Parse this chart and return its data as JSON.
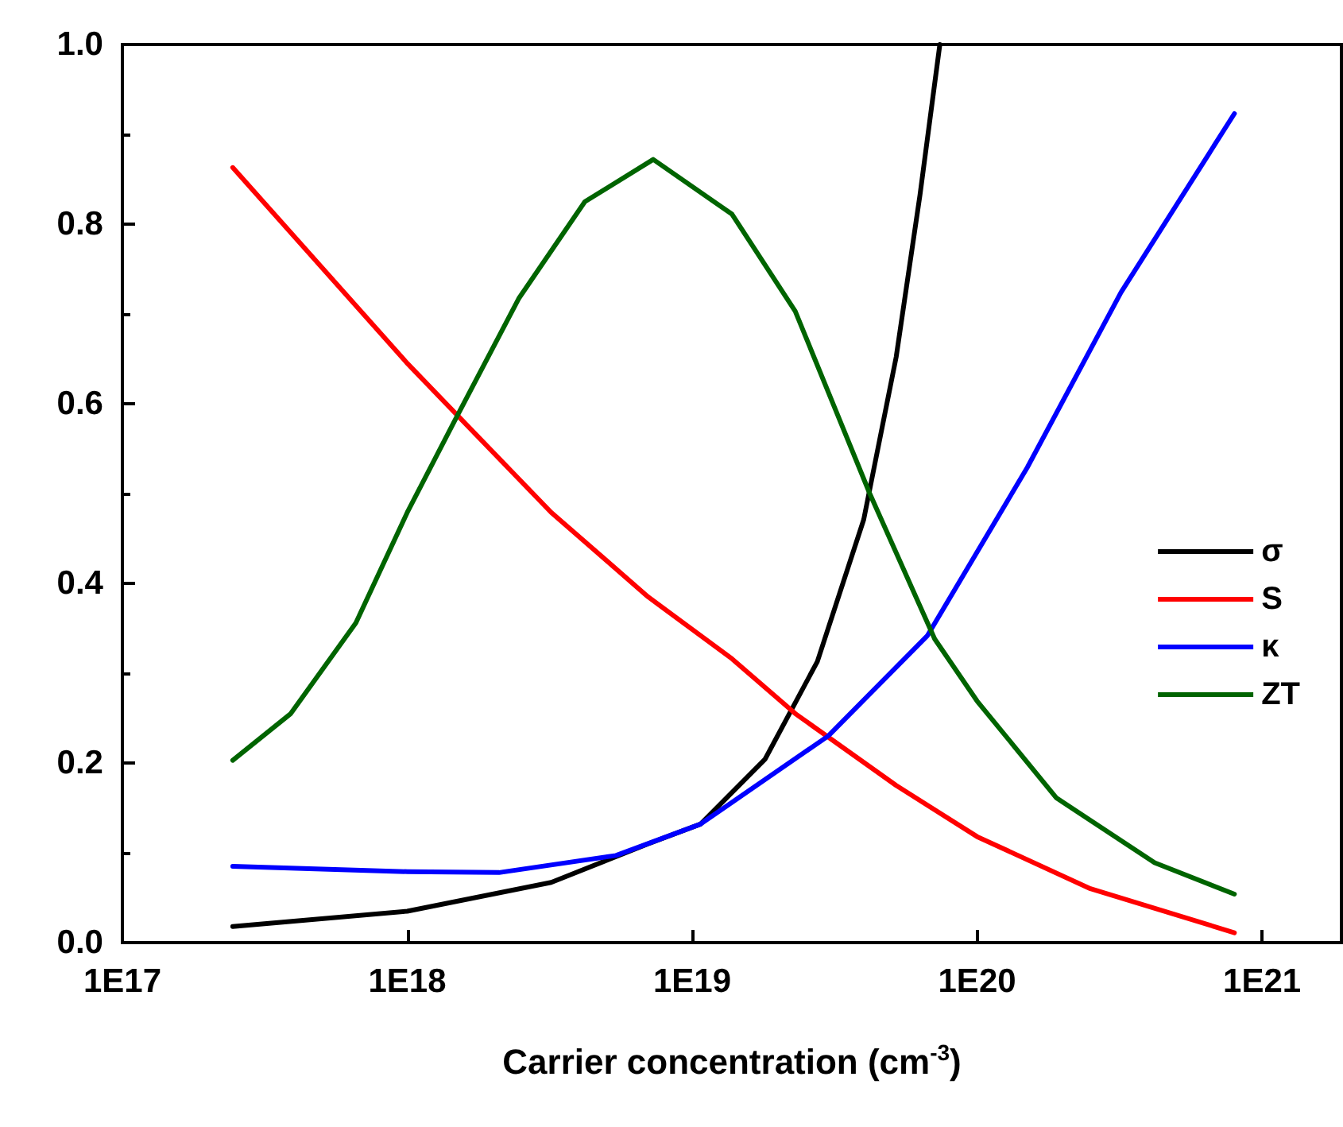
{
  "chart_data": {
    "type": "line",
    "xlabel": "Carrier concentration (cm$^{-3}$)",
    "log": "x",
    "xlim": [
      1e+17,
      1.9e+21
    ],
    "xticks": [
      {
        "value": 1e+17,
        "label": "1E17"
      },
      {
        "value": 1e+18,
        "label": "1E18"
      },
      {
        "value": 1e+19,
        "label": "1E19"
      },
      {
        "value": 1e+20,
        "label": "1E20"
      },
      {
        "value": 1e+21,
        "label": "1E21"
      }
    ],
    "ylim": [
      0,
      1
    ],
    "yticks": [
      {
        "value": 0,
        "label": "0.0"
      },
      {
        "value": 0.2,
        "label": "0.2"
      },
      {
        "value": 0.4,
        "label": "0.4"
      },
      {
        "value": 0.6,
        "label": "0.6"
      },
      {
        "value": 0.8,
        "label": "0.8"
      },
      {
        "value": 1,
        "label": "1.0"
      }
    ],
    "grid": false,
    "legend": "right",
    "marker": "none",
    "line_style": "solid",
    "series": [
      {
        "name": "σ",
        "color": "#000000",
        "x": [
          2.44e+17,
          1e+18,
          3.2e+18,
          7e+18,
          1.07e+19,
          1.8e+19,
          2.75e+19,
          4e+19,
          5.2e+19,
          6.3e+19,
          7.4e+19
        ],
        "values": [
          0.018,
          0.035,
          0.067,
          0.11,
          0.132,
          0.204,
          0.313,
          0.471,
          0.652,
          0.832,
          1.0
        ]
      },
      {
        "name": "S",
        "color": "#ff0000",
        "x": [
          2.44e+17,
          1e+18,
          1.5e+18,
          3.2e+18,
          7e+18,
          1.38e+19,
          2.3e+19,
          5.2e+19,
          1e+20,
          2.5e+20,
          8e+20
        ],
        "values": [
          0.863,
          0.645,
          0.587,
          0.479,
          0.385,
          0.316,
          0.255,
          0.175,
          0.118,
          0.06,
          0.011
        ]
      },
      {
        "name": "κ",
        "color": "#0000ff",
        "x": [
          2.44e+17,
          1e+18,
          2.1e+18,
          5.4e+18,
          1.07e+19,
          3e+19,
          6.7e+19,
          1.5e+20,
          3.2e+20,
          8e+20
        ],
        "values": [
          0.085,
          0.079,
          0.078,
          0.097,
          0.132,
          0.23,
          0.342,
          0.529,
          0.724,
          0.923
        ]
      },
      {
        "name": "ZT",
        "color": "#006400",
        "x": [
          2.44e+17,
          3.9e+17,
          6.6e+17,
          1e+18,
          1.5e+18,
          2.46e+18,
          4.2e+18,
          7.3e+18,
          1.38e+19,
          2.3e+19,
          4.2e+19,
          7.1e+19,
          1e+20,
          1.9e+20,
          4.2e+20,
          8e+20
        ],
        "values": [
          0.203,
          0.255,
          0.356,
          0.479,
          0.587,
          0.717,
          0.825,
          0.872,
          0.811,
          0.703,
          0.5,
          0.338,
          0.269,
          0.161,
          0.089,
          0.054
        ]
      }
    ]
  }
}
